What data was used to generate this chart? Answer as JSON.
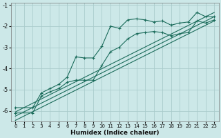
{
  "xlabel": "Humidex (Indice chaleur)",
  "bg_color": "#cce8e8",
  "grid_color": "#aacccc",
  "line_color": "#1a6b5a",
  "xlim": [
    -0.5,
    23.5
  ],
  "ylim": [
    -6.5,
    -0.9
  ],
  "yticks": [
    -6,
    -5,
    -4,
    -3,
    -2,
    -1
  ],
  "xticks": [
    0,
    1,
    2,
    3,
    4,
    5,
    6,
    7,
    8,
    9,
    10,
    11,
    12,
    13,
    14,
    15,
    16,
    17,
    18,
    19,
    20,
    21,
    22,
    23
  ],
  "line1_x": [
    0,
    2,
    3,
    4,
    5,
    6,
    7,
    8,
    9,
    10,
    11,
    12,
    13,
    14,
    15,
    16,
    17,
    18,
    19,
    20,
    21,
    22,
    23
  ],
  "line1_y": [
    -5.85,
    -5.85,
    -5.15,
    -4.95,
    -4.75,
    -4.4,
    -3.45,
    -3.5,
    -3.5,
    -2.95,
    -2.0,
    -2.1,
    -1.7,
    -1.65,
    -1.7,
    -1.8,
    -1.75,
    -1.95,
    -1.85,
    -1.8,
    -1.35,
    -1.55,
    -1.55
  ],
  "line2_x": [
    0,
    2,
    3,
    4,
    5,
    6,
    7,
    8,
    9,
    10,
    11,
    12,
    13,
    14,
    15,
    16,
    17,
    18,
    19,
    20,
    21,
    22,
    23
  ],
  "line2_y": [
    -6.1,
    -6.1,
    -5.3,
    -5.1,
    -4.95,
    -4.65,
    -4.55,
    -4.55,
    -4.55,
    -3.85,
    -3.2,
    -3.0,
    -2.6,
    -2.35,
    -2.3,
    -2.25,
    -2.3,
    -2.45,
    -2.35,
    -2.3,
    -1.75,
    -1.85,
    -1.7
  ],
  "line3_x": [
    0,
    23
  ],
  "line3_y": [
    -6.05,
    -1.35
  ],
  "line4_x": [
    0,
    23
  ],
  "line4_y": [
    -6.25,
    -1.55
  ],
  "line5_x": [
    0,
    23
  ],
  "line5_y": [
    -6.45,
    -1.75
  ]
}
